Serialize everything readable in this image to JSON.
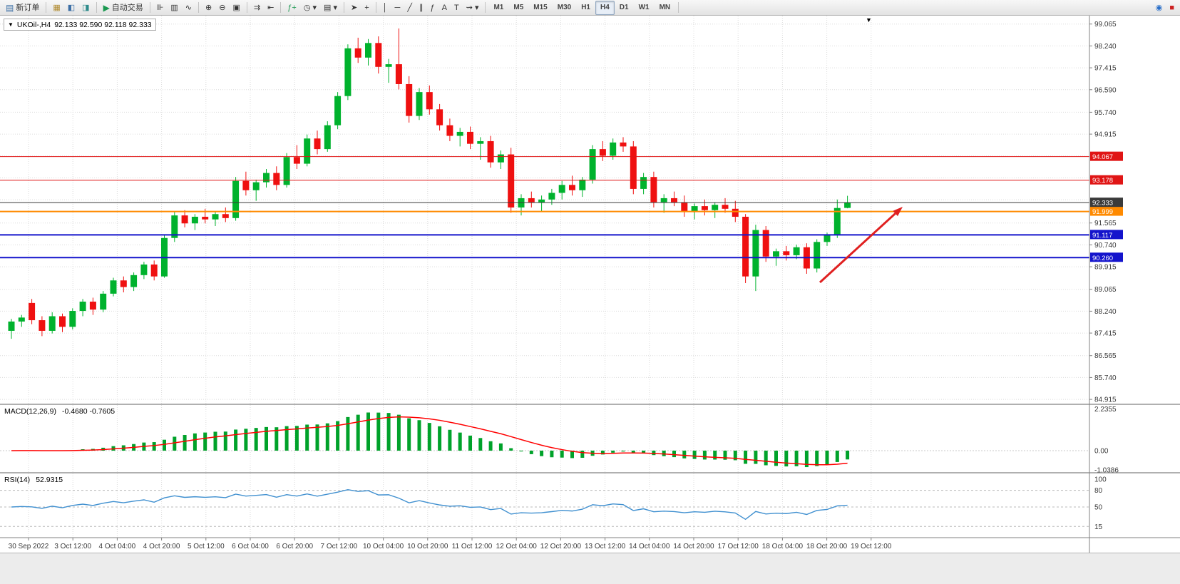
{
  "toolbar": {
    "active_timeframe": "H4",
    "groups": [
      {
        "items": [
          {
            "name": "new-order-button",
            "icon": "new-order-icon",
            "glyph": "▤",
            "glyph_color": "#3b6ea5",
            "label": "新订单"
          }
        ]
      },
      {
        "items": [
          {
            "name": "new-chart-icon",
            "glyph": "▦",
            "glyph_color": "#b08a2e"
          },
          {
            "name": "profiles-icon",
            "glyph": "◧",
            "glyph_color": "#3b6ea5"
          },
          {
            "name": "market-watch-icon",
            "glyph": "◨",
            "glyph_color": "#2e8b8b"
          }
        ]
      },
      {
        "items": [
          {
            "name": "autotrade-button",
            "icon": "play-icon",
            "glyph": "▶",
            "glyph_color": "#1a9850",
            "label": "自动交易"
          }
        ]
      },
      {
        "items": [
          {
            "name": "bar-chart-icon",
            "glyph": "⊪"
          },
          {
            "name": "candlestick-chart-icon",
            "glyph": "▥"
          },
          {
            "name": "line-chart-icon",
            "glyph": "∿"
          }
        ]
      },
      {
        "items": [
          {
            "name": "zoom-in-icon",
            "glyph": "⊕"
          },
          {
            "name": "zoom-out-icon",
            "glyph": "⊖"
          },
          {
            "name": "tile-windows-icon",
            "glyph": "▣"
          }
        ]
      },
      {
        "items": [
          {
            "name": "auto-scroll-icon",
            "glyph": "⇉"
          },
          {
            "name": "chart-shift-icon",
            "glyph": "⇤"
          }
        ]
      },
      {
        "items": [
          {
            "name": "indicators-icon",
            "glyph": "ƒ+",
            "glyph_color": "#1a9850"
          },
          {
            "name": "periods-icon",
            "glyph": "◷ ▾"
          },
          {
            "name": "templates-icon",
            "glyph": "▤ ▾"
          }
        ]
      },
      {
        "items": [
          {
            "name": "cursor-icon",
            "glyph": "➤"
          },
          {
            "name": "crosshair-icon",
            "glyph": "+"
          }
        ]
      },
      {
        "items": [
          {
            "name": "vline-tool-icon",
            "glyph": "│"
          },
          {
            "name": "hline-tool-icon",
            "glyph": "─"
          },
          {
            "name": "trendline-tool-icon",
            "glyph": "╱"
          },
          {
            "name": "channel-tool-icon",
            "glyph": "∥"
          },
          {
            "name": "fibonacci-tool-icon",
            "glyph": "ƒ"
          },
          {
            "name": "text-tool-icon",
            "glyph": "A"
          },
          {
            "name": "label-tool-icon",
            "glyph": "T"
          },
          {
            "name": "arrows-tool-icon",
            "glyph": "⇝ ▾"
          }
        ]
      },
      {
        "timeframes": true,
        "items": [
          {
            "name": "tf-m1",
            "label": "M1"
          },
          {
            "name": "tf-m5",
            "label": "M5"
          },
          {
            "name": "tf-m15",
            "label": "M15"
          },
          {
            "name": "tf-m30",
            "label": "M30"
          },
          {
            "name": "tf-h1",
            "label": "H1"
          },
          {
            "name": "tf-h4",
            "label": "H4"
          },
          {
            "name": "tf-d1",
            "label": "D1"
          },
          {
            "name": "tf-w1",
            "label": "W1"
          },
          {
            "name": "tf-mn",
            "label": "MN"
          }
        ]
      },
      {
        "right": true,
        "items": [
          {
            "name": "community-icon",
            "glyph": "◉",
            "glyph_color": "#2a6fc9"
          },
          {
            "name": "alert-icon",
            "glyph": "■",
            "glyph_color": "#cc2222"
          }
        ]
      }
    ]
  },
  "chart": {
    "symbol_label": "UKOil-,H4",
    "ohlc_label": "92.133 92.590 92.118 92.333",
    "macd_label": "MACD(12,26,9)",
    "macd_values": "-0.4680 -0.7605",
    "rsi_label": "RSI(14)",
    "rsi_value": "52.9315",
    "dropdown_caret": "▼",
    "shift_marker": "▼"
  },
  "chart_data": {
    "type": "candlestick",
    "symbol": "UKOil-",
    "timeframe": "H4",
    "candles": [
      [
        87.5,
        87.95,
        87.2,
        87.85
      ],
      [
        87.85,
        88.1,
        87.65,
        88.0
      ],
      [
        88.55,
        88.7,
        87.75,
        87.9
      ],
      [
        87.9,
        88.05,
        87.3,
        87.5
      ],
      [
        87.5,
        88.2,
        87.4,
        88.05
      ],
      [
        88.05,
        88.15,
        87.45,
        87.65
      ],
      [
        87.65,
        88.35,
        87.55,
        88.25
      ],
      [
        88.25,
        88.7,
        88.05,
        88.6
      ],
      [
        88.6,
        88.75,
        88.1,
        88.3
      ],
      [
        88.3,
        89.0,
        88.2,
        88.9
      ],
      [
        88.9,
        89.5,
        88.8,
        89.4
      ],
      [
        89.4,
        89.55,
        88.95,
        89.15
      ],
      [
        89.15,
        89.7,
        89.0,
        89.6
      ],
      [
        89.6,
        90.1,
        89.45,
        90.0
      ],
      [
        90.0,
        90.15,
        89.4,
        89.55
      ],
      [
        89.55,
        91.1,
        89.5,
        91.0
      ],
      [
        91.0,
        92.0,
        90.85,
        91.85
      ],
      [
        91.85,
        92.05,
        91.4,
        91.55
      ],
      [
        91.55,
        91.9,
        91.3,
        91.8
      ],
      [
        91.8,
        92.1,
        91.55,
        91.7
      ],
      [
        91.7,
        92.0,
        91.45,
        91.9
      ],
      [
        91.9,
        92.15,
        91.6,
        91.75
      ],
      [
        91.75,
        93.3,
        91.65,
        93.15
      ],
      [
        93.15,
        93.5,
        92.6,
        92.8
      ],
      [
        92.8,
        93.2,
        92.4,
        93.1
      ],
      [
        93.1,
        93.6,
        92.9,
        93.45
      ],
      [
        93.45,
        93.7,
        92.8,
        93.0
      ],
      [
        93.0,
        94.2,
        92.9,
        94.05
      ],
      [
        94.05,
        94.5,
        93.6,
        93.8
      ],
      [
        93.8,
        94.9,
        93.7,
        94.75
      ],
      [
        94.75,
        95.05,
        94.15,
        94.35
      ],
      [
        94.35,
        95.4,
        94.25,
        95.25
      ],
      [
        95.25,
        96.5,
        95.1,
        96.35
      ],
      [
        96.35,
        98.3,
        96.2,
        98.15
      ],
      [
        98.15,
        98.55,
        97.6,
        97.8
      ],
      [
        97.8,
        98.5,
        97.5,
        98.35
      ],
      [
        98.35,
        98.6,
        97.2,
        97.45
      ],
      [
        97.45,
        97.75,
        96.85,
        97.55
      ],
      [
        97.55,
        98.9,
        96.6,
        96.8
      ],
      [
        96.8,
        97.1,
        95.35,
        95.6
      ],
      [
        95.6,
        96.65,
        95.45,
        96.5
      ],
      [
        96.5,
        96.75,
        95.65,
        95.85
      ],
      [
        95.85,
        96.05,
        95.05,
        95.25
      ],
      [
        95.25,
        95.5,
        94.65,
        94.85
      ],
      [
        94.85,
        95.15,
        94.45,
        95.0
      ],
      [
        95.0,
        95.2,
        94.35,
        94.55
      ],
      [
        94.55,
        94.8,
        93.95,
        94.65
      ],
      [
        94.65,
        94.85,
        93.65,
        93.85
      ],
      [
        93.85,
        94.3,
        93.6,
        94.15
      ],
      [
        94.15,
        94.4,
        91.95,
        92.15
      ],
      [
        92.15,
        92.65,
        91.85,
        92.5
      ],
      [
        92.5,
        92.75,
        92.15,
        92.35
      ],
      [
        92.35,
        92.6,
        92.0,
        92.45
      ],
      [
        92.45,
        92.85,
        92.25,
        92.7
      ],
      [
        92.7,
        93.15,
        92.45,
        93.0
      ],
      [
        93.0,
        93.35,
        92.6,
        92.8
      ],
      [
        92.8,
        93.3,
        92.55,
        93.2
      ],
      [
        93.2,
        94.5,
        93.05,
        94.35
      ],
      [
        94.35,
        94.65,
        93.9,
        94.1
      ],
      [
        94.1,
        94.75,
        93.95,
        94.6
      ],
      [
        94.6,
        94.8,
        94.25,
        94.45
      ],
      [
        94.45,
        94.65,
        92.65,
        92.85
      ],
      [
        92.85,
        93.45,
        92.65,
        93.3
      ],
      [
        93.3,
        93.5,
        92.15,
        92.35
      ],
      [
        92.35,
        92.65,
        91.95,
        92.5
      ],
      [
        92.5,
        92.75,
        92.2,
        92.35
      ],
      [
        92.35,
        92.6,
        91.8,
        92.0
      ],
      [
        92.0,
        92.3,
        91.7,
        92.2
      ],
      [
        92.2,
        92.45,
        91.85,
        92.05
      ],
      [
        92.05,
        92.35,
        91.75,
        92.25
      ],
      [
        92.25,
        92.5,
        91.95,
        92.1
      ],
      [
        92.1,
        92.4,
        91.6,
        91.8
      ],
      [
        91.8,
        91.9,
        89.3,
        89.55
      ],
      [
        89.55,
        91.5,
        89.0,
        91.3
      ],
      [
        91.3,
        91.45,
        90.1,
        90.3
      ],
      [
        90.3,
        90.6,
        89.95,
        90.5
      ],
      [
        90.5,
        90.7,
        90.15,
        90.35
      ],
      [
        90.35,
        90.75,
        90.2,
        90.65
      ],
      [
        90.65,
        90.8,
        89.65,
        89.85
      ],
      [
        89.85,
        90.95,
        89.7,
        90.85
      ],
      [
        90.85,
        91.2,
        90.7,
        91.1
      ],
      [
        91.1,
        92.45,
        91.0,
        92.13
      ],
      [
        92.133,
        92.59,
        92.118,
        92.333
      ]
    ],
    "time_labels": [
      "30 Sep 2022",
      "3 Oct 12:00",
      "4 Oct 04:00",
      "4 Oct 20:00",
      "5 Oct 12:00",
      "6 Oct 04:00",
      "6 Oct 20:00",
      "7 Oct 12:00",
      "10 Oct 04:00",
      "10 Oct 20:00",
      "11 Oct 12:00",
      "12 Oct 04:00",
      "12 Oct 20:00",
      "13 Oct 12:00",
      "14 Oct 04:00",
      "14 Oct 20:00",
      "17 Oct 12:00",
      "18 Oct 04:00",
      "18 Oct 20:00",
      "19 Oct 12:00"
    ],
    "price_ticks": [
      "99.065",
      "98.240",
      "97.415",
      "96.590",
      "95.740",
      "94.915",
      "91.565",
      "90.740",
      "89.915",
      "89.065",
      "88.240",
      "87.415",
      "86.565",
      "85.740",
      "84.915"
    ],
    "grid_extra_prices": [
      94.09,
      93.265,
      92.44
    ],
    "hlines": [
      {
        "price": 94.067,
        "label": "94.067",
        "color": "#e01515",
        "width": 1,
        "name": "resistance-line-94067"
      },
      {
        "price": 93.178,
        "label": "93.178",
        "color": "#e01515",
        "width": 1,
        "name": "resistance-line-93178"
      },
      {
        "price": 91.999,
        "label": "91.999",
        "color": "#ff8a00",
        "width": 2,
        "name": "pivot-line-91999"
      },
      {
        "price": 91.117,
        "label": "91.117",
        "color": "#1414cc",
        "width": 2,
        "name": "support-line-91117"
      },
      {
        "price": 90.26,
        "label": "90.260",
        "color": "#1414cc",
        "width": 2,
        "name": "support-line-90260"
      }
    ],
    "bid_line": {
      "price": 92.333,
      "label": "92.333",
      "color": "#3a3a3a"
    },
    "macd": {
      "scale_labels": [
        "2.2355",
        "0.00",
        "-1.0386"
      ]
    },
    "rsi": {
      "levels": [
        80,
        50,
        15
      ],
      "scale_labels": [
        "100",
        "80",
        "50",
        "15"
      ]
    },
    "arrow": {
      "from": [
        1150,
        374
      ],
      "to": [
        1266,
        268
      ],
      "color": "#e02020"
    },
    "colors": {
      "bull": "#00b22d",
      "bear": "#ef1010",
      "grid": "#dcdcdc",
      "macd_hist": "#00a22a",
      "macd_signal": "#ff0000",
      "rsi_line": "#4090d0",
      "axis_text": "#3a3a3a"
    }
  }
}
